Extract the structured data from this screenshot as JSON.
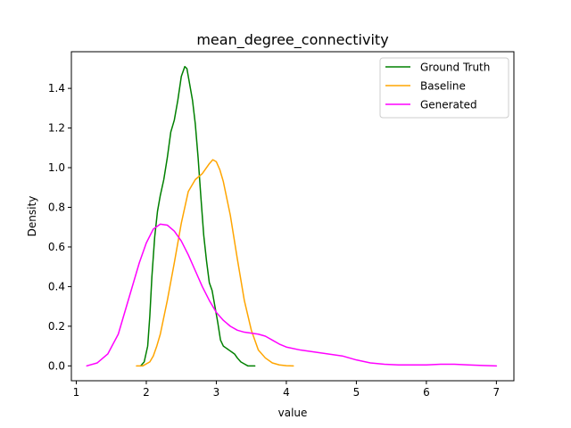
{
  "chart_data": {
    "type": "line",
    "title": "mean_degree_connectivity",
    "xlabel": "value",
    "ylabel": "Density",
    "xlim": [
      0.93,
      7.25
    ],
    "ylim": [
      -0.075,
      1.585
    ],
    "xticks": [
      1,
      2,
      3,
      4,
      5,
      6,
      7
    ],
    "yticks": [
      0.0,
      0.2,
      0.4,
      0.6,
      0.8,
      1.0,
      1.2,
      1.4
    ],
    "grid": false,
    "legend_position": "top-right",
    "series": [
      {
        "name": "Ground Truth",
        "color": "#008000",
        "x": [
          1.92,
          1.97,
          2.02,
          2.05,
          2.08,
          2.12,
          2.16,
          2.2,
          2.25,
          2.3,
          2.35,
          2.4,
          2.45,
          2.5,
          2.55,
          2.58,
          2.62,
          2.66,
          2.7,
          2.74,
          2.78,
          2.82,
          2.86,
          2.9,
          2.94,
          2.98,
          3.02,
          3.06,
          3.1,
          3.14,
          3.18,
          3.22,
          3.26,
          3.3,
          3.35,
          3.4,
          3.45,
          3.5,
          3.55
        ],
        "y": [
          0.0,
          0.02,
          0.1,
          0.25,
          0.45,
          0.65,
          0.78,
          0.86,
          0.94,
          1.05,
          1.18,
          1.24,
          1.34,
          1.46,
          1.51,
          1.5,
          1.42,
          1.34,
          1.22,
          1.05,
          0.85,
          0.66,
          0.53,
          0.42,
          0.38,
          0.3,
          0.22,
          0.13,
          0.1,
          0.09,
          0.08,
          0.07,
          0.06,
          0.04,
          0.02,
          0.01,
          0.0,
          0.0,
          0.0
        ]
      },
      {
        "name": "Baseline",
        "color": "#FFA500",
        "x": [
          1.86,
          1.95,
          2.05,
          2.1,
          2.15,
          2.2,
          2.3,
          2.4,
          2.5,
          2.6,
          2.7,
          2.8,
          2.9,
          2.95,
          3.0,
          3.05,
          3.1,
          3.2,
          3.3,
          3.4,
          3.5,
          3.6,
          3.7,
          3.8,
          3.9,
          4.0,
          4.1
        ],
        "y": [
          0.0,
          0.0,
          0.02,
          0.05,
          0.1,
          0.16,
          0.33,
          0.52,
          0.72,
          0.88,
          0.94,
          0.97,
          1.02,
          1.04,
          1.03,
          0.99,
          0.93,
          0.76,
          0.54,
          0.33,
          0.18,
          0.08,
          0.04,
          0.015,
          0.005,
          0.001,
          0.0
        ]
      },
      {
        "name": "Generated",
        "color": "#FF00FF",
        "x": [
          1.15,
          1.3,
          1.45,
          1.6,
          1.75,
          1.9,
          2.0,
          2.1,
          2.2,
          2.3,
          2.4,
          2.5,
          2.6,
          2.7,
          2.8,
          2.9,
          3.0,
          3.1,
          3.2,
          3.3,
          3.4,
          3.5,
          3.6,
          3.7,
          3.8,
          3.9,
          4.0,
          4.2,
          4.4,
          4.6,
          4.8,
          5.0,
          5.2,
          5.4,
          5.6,
          5.8,
          6.0,
          6.2,
          6.4,
          6.6,
          6.8,
          7.0
        ],
        "y": [
          0.0,
          0.015,
          0.06,
          0.16,
          0.34,
          0.52,
          0.62,
          0.69,
          0.715,
          0.71,
          0.68,
          0.63,
          0.56,
          0.48,
          0.4,
          0.33,
          0.27,
          0.23,
          0.2,
          0.18,
          0.17,
          0.165,
          0.16,
          0.15,
          0.13,
          0.11,
          0.095,
          0.08,
          0.07,
          0.06,
          0.05,
          0.03,
          0.015,
          0.008,
          0.005,
          0.005,
          0.005,
          0.008,
          0.008,
          0.005,
          0.002,
          0.0
        ]
      }
    ]
  }
}
